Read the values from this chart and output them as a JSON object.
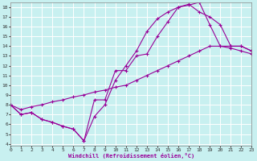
{
  "xlabel": "Windchill (Refroidissement éolien,°C)",
  "xlim": [
    0,
    23
  ],
  "ylim": [
    4,
    18
  ],
  "xticks": [
    0,
    1,
    2,
    3,
    4,
    5,
    6,
    7,
    8,
    9,
    10,
    11,
    12,
    13,
    14,
    15,
    16,
    17,
    18,
    19,
    20,
    21,
    22,
    23
  ],
  "yticks": [
    4,
    5,
    6,
    7,
    8,
    9,
    10,
    11,
    12,
    13,
    14,
    15,
    16,
    17,
    18
  ],
  "bg_color": "#c8f0f0",
  "grid_color": "#ffffff",
  "line_color": "#990099",
  "line1_x": [
    0,
    1,
    2,
    3,
    4,
    5,
    6,
    7,
    8,
    9,
    10,
    11,
    12,
    13,
    14,
    15,
    16,
    17,
    18,
    19,
    20,
    21,
    22,
    23
  ],
  "line1_y": [
    8.0,
    7.0,
    7.2,
    6.5,
    6.2,
    5.8,
    5.5,
    4.3,
    8.5,
    8.5,
    11.5,
    11.5,
    13.0,
    13.2,
    15.0,
    16.5,
    18.0,
    18.2,
    18.5,
    16.2,
    14.0,
    14.0,
    14.0,
    13.5
  ],
  "line2_x": [
    0,
    1,
    2,
    3,
    4,
    5,
    6,
    7,
    8,
    9,
    10,
    11,
    12,
    13,
    14,
    15,
    16,
    17,
    18,
    19,
    20,
    21,
    22,
    23
  ],
  "line2_y": [
    8.0,
    7.0,
    7.2,
    6.5,
    6.2,
    5.8,
    5.5,
    4.3,
    6.8,
    8.0,
    10.5,
    12.0,
    13.5,
    15.5,
    16.8,
    17.5,
    18.0,
    18.3,
    17.5,
    17.0,
    16.2,
    14.0,
    14.0,
    13.5
  ],
  "line3_x": [
    0,
    1,
    2,
    3,
    4,
    5,
    6,
    7,
    8,
    9,
    10,
    11,
    12,
    13,
    14,
    15,
    16,
    17,
    18,
    19,
    20,
    21,
    22,
    23
  ],
  "line3_y": [
    8.0,
    7.5,
    7.8,
    8.0,
    8.3,
    8.5,
    8.8,
    9.0,
    9.3,
    9.5,
    9.8,
    10.0,
    10.5,
    11.0,
    11.5,
    12.0,
    12.5,
    13.0,
    13.5,
    14.0,
    14.0,
    13.8,
    13.5,
    13.2
  ],
  "marker": "+",
  "markersize": 3,
  "linewidth": 0.8
}
